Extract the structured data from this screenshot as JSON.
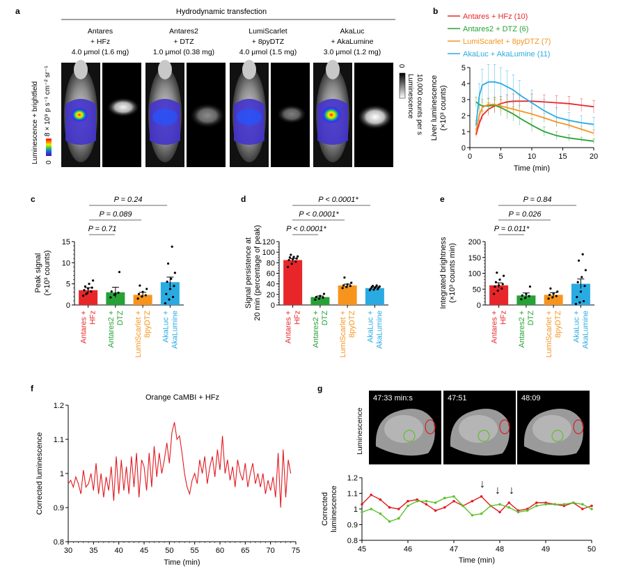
{
  "figure": {
    "panels": {
      "a": "a",
      "b": "b",
      "c": "c",
      "d": "d",
      "e": "e",
      "f": "f",
      "g": "g"
    },
    "a": {
      "title": "Hydrodynamic transfection",
      "columns": [
        {
          "line1": "Antares",
          "line2": "+ HFz",
          "line3": "4.0 μmol (1.6 mg)"
        },
        {
          "line1": "Antares2",
          "line2": "+ DTZ",
          "line3": "1.0 μmol (0.38 mg)"
        },
        {
          "line1": "LumiScarlet",
          "line2": "+ 8pyDTZ",
          "line3": "4.0 μmol (1.5 mg)"
        },
        {
          "line1": "AkaLuc",
          "line2": "+ AkaLumine",
          "line3": "3.0 μmol (1.2 mg)"
        }
      ],
      "left_label": "Luminescence + brightfield",
      "left_scale_top": "8 × 10⁹ p s⁻¹ cm⁻² sr⁻¹",
      "left_scale_bottom": "0",
      "right_scale_top": "0",
      "right_label_1": "Luminescence",
      "right_label_2": "10,000 counts per s",
      "colors": {
        "mouse_fur": "#b8b8b8",
        "signal_purple": "#4433cc",
        "signal_hot": "#ffdd00"
      }
    },
    "b": {
      "legend": [
        "Antares + HFz (10)",
        "Antares2 + DTZ (6)",
        "LumiScarlet + 8pyDTZ (7)",
        "AkaLuc + AkaLumine (11)"
      ]
    },
    "c": {
      "pvalues": [
        "P = 0.24",
        "P = 0.089",
        "P = 0.71"
      ]
    },
    "d": {
      "pvalues": [
        "P < 0.0001*",
        "P < 0.0001*",
        "P < 0.0001*"
      ]
    },
    "e": {
      "pvalues": [
        "P = 0.84",
        "P = 0.026",
        "P = 0.011*"
      ]
    },
    "g": {
      "timestamps": [
        "47:33 min:s",
        "47:51",
        "48:09"
      ],
      "image_label": "Luminescence",
      "arrows": [
        "↓",
        "↓",
        "↓"
      ]
    }
  },
  "chart_data": [
    {
      "id": "b",
      "type": "line",
      "title": "",
      "xlabel": "Time (min)",
      "ylabel": "Liver luminescence (×10³ counts)",
      "xlim": [
        0,
        20
      ],
      "ylim": [
        0,
        5
      ],
      "xticks": [
        0,
        5,
        10,
        15,
        20
      ],
      "yticks": [
        0,
        1,
        2,
        3,
        4,
        5
      ],
      "series": [
        {
          "name": "Antares + HFz (10)",
          "color": "#e8262a",
          "x": [
            1,
            1.5,
            2,
            3,
            4,
            5,
            6,
            7,
            8,
            10,
            12,
            14,
            16,
            18,
            20
          ],
          "y": [
            0.8,
            1.5,
            2.0,
            2.4,
            2.6,
            2.75,
            2.85,
            2.9,
            2.9,
            2.9,
            2.85,
            2.8,
            2.75,
            2.65,
            2.55
          ],
          "err": [
            0.1,
            0.2,
            0.3,
            0.4,
            0.4,
            0.45,
            0.45,
            0.45,
            0.45,
            0.45,
            0.45,
            0.45,
            0.45,
            0.4,
            0.4
          ]
        },
        {
          "name": "Antares2 + DTZ (6)",
          "color": "#26a136",
          "x": [
            1,
            1.5,
            2,
            3,
            4,
            5,
            6,
            7,
            8,
            10,
            12,
            14,
            16,
            18,
            20
          ],
          "y": [
            2.85,
            2.7,
            2.6,
            2.6,
            2.65,
            2.5,
            2.3,
            2.1,
            1.85,
            1.4,
            1.0,
            0.75,
            0.6,
            0.5,
            0.4
          ],
          "err": [
            0.3,
            0.35,
            0.4,
            0.45,
            0.5,
            0.5,
            0.5,
            0.45,
            0.45,
            0.4,
            0.3,
            0.25,
            0.2,
            0.15,
            0.15
          ]
        },
        {
          "name": "LumiScarlet + 8pyDTZ (7)",
          "color": "#f7941d",
          "x": [
            1,
            1.5,
            2,
            3,
            4,
            5,
            6,
            7,
            8,
            10,
            12,
            14,
            16,
            18,
            20
          ],
          "y": [
            1.0,
            2.0,
            2.5,
            2.7,
            2.7,
            2.6,
            2.5,
            2.4,
            2.3,
            2.1,
            1.85,
            1.6,
            1.4,
            1.15,
            0.9
          ],
          "err": [
            0.2,
            0.3,
            0.35,
            0.4,
            0.4,
            0.4,
            0.4,
            0.4,
            0.35,
            0.35,
            0.3,
            0.3,
            0.25,
            0.2,
            0.2
          ]
        },
        {
          "name": "AkaLuc + AkaLumine (11)",
          "color": "#29abe2",
          "x": [
            1,
            1.5,
            2,
            3,
            4,
            5,
            6,
            7,
            8,
            10,
            12,
            14,
            16,
            18,
            20
          ],
          "y": [
            1.4,
            3.2,
            3.9,
            4.1,
            4.1,
            4.0,
            3.8,
            3.6,
            3.3,
            2.8,
            2.3,
            1.9,
            1.7,
            1.55,
            1.45
          ],
          "err": [
            0.3,
            0.8,
            1.0,
            1.1,
            1.1,
            1.0,
            1.0,
            0.95,
            0.9,
            0.8,
            0.7,
            0.6,
            0.5,
            0.45,
            0.45
          ]
        }
      ]
    },
    {
      "id": "c",
      "type": "bar",
      "ylabel": "Peak signal (×10³ counts)",
      "ylim": [
        0,
        15
      ],
      "yticks": [
        0,
        5,
        10,
        15
      ],
      "categories": [
        "Antares + HFz",
        "Antares2 + DTZ",
        "LumiScarlet + 8pyDTZ",
        "AkaLuc + AkaLumine"
      ],
      "colors": [
        "#e8262a",
        "#26a136",
        "#f7941d",
        "#29abe2"
      ],
      "values": [
        3.5,
        3.0,
        2.4,
        5.4
      ],
      "errors": [
        0.6,
        1.2,
        0.6,
        1.2
      ],
      "points": [
        [
          2.2,
          2.8,
          3.2,
          3.5,
          3.9,
          4.1,
          4.4,
          5.0,
          5.8,
          2.6
        ],
        [
          1.8,
          2.4,
          2.9,
          3.2,
          2.6,
          7.8
        ],
        [
          1.5,
          2.0,
          2.3,
          2.6,
          3.1,
          3.8,
          4.6
        ],
        [
          0.4,
          1.3,
          1.9,
          2.6,
          3.8,
          4.5,
          5.5,
          6.2,
          7.6,
          9.8,
          13.8
        ]
      ]
    },
    {
      "id": "d",
      "type": "bar",
      "ylabel": "Signal persistence at 20 min (percentage of peak)",
      "ylim": [
        0,
        120
      ],
      "yticks": [
        0,
        20,
        40,
        60,
        80,
        100,
        120
      ],
      "categories": [
        "Antares + HFz",
        "Antares2 + DTZ",
        "LumiScarlet + 8pyDTZ",
        "AkaLuc + AkaLumine"
      ],
      "colors": [
        "#e8262a",
        "#26a136",
        "#f7941d",
        "#29abe2"
      ],
      "values": [
        85,
        15,
        37,
        32
      ],
      "errors": [
        3,
        2,
        2.5,
        2
      ],
      "points": [
        [
          72,
          78,
          82,
          85,
          87,
          88,
          90,
          91,
          92,
          95
        ],
        [
          10,
          12,
          14,
          15,
          17,
          21
        ],
        [
          32,
          34,
          36,
          37,
          39,
          42,
          52
        ],
        [
          28,
          29,
          30,
          31,
          32,
          33,
          34,
          34,
          35,
          36,
          37
        ]
      ]
    },
    {
      "id": "e",
      "type": "bar",
      "ylabel": "Integrated brightness (×10³ counts min)",
      "ylim": [
        0,
        200
      ],
      "yticks": [
        0,
        50,
        100,
        150,
        200
      ],
      "categories": [
        "Antares + HFz",
        "Antares2 + DTZ",
        "LumiScarlet + 8pyDTZ",
        "AkaLuc + AkaLumine"
      ],
      "colors": [
        "#e8262a",
        "#26a136",
        "#f7941d",
        "#29abe2"
      ],
      "values": [
        62,
        30,
        32,
        67
      ],
      "errors": [
        8,
        8,
        7,
        15
      ],
      "points": [
        [
          35,
          45,
          52,
          58,
          62,
          66,
          72,
          80,
          92,
          102
        ],
        [
          18,
          22,
          28,
          30,
          35,
          58
        ],
        [
          20,
          24,
          28,
          32,
          36,
          42,
          52
        ],
        [
          3,
          8,
          12,
          25,
          42,
          60,
          72,
          88,
          110,
          140,
          160
        ]
      ]
    },
    {
      "id": "f",
      "type": "line",
      "title": "Orange CaMBI + HFz",
      "xlabel": "Time (min)",
      "ylabel": "Corrected luminescence",
      "xlim": [
        30,
        75
      ],
      "ylim": [
        0.8,
        1.2
      ],
      "xticks": [
        30,
        35,
        40,
        45,
        50,
        55,
        60,
        65,
        70,
        75
      ],
      "yticks": [
        0.8,
        0.9,
        1.0,
        1.1,
        1.2
      ],
      "series": [
        {
          "name": "Orange CaMBI + HFz",
          "color": "#e0191f",
          "x": [
            30,
            30.5,
            31,
            31.5,
            32,
            32.5,
            33,
            33.5,
            34,
            34.5,
            35,
            35.5,
            36,
            36.5,
            37,
            37.5,
            38,
            38.5,
            39,
            39.5,
            40,
            40.5,
            41,
            41.5,
            42,
            42.5,
            43,
            43.5,
            44,
            44.5,
            45,
            45.5,
            46,
            46.5,
            47,
            47.5,
            48,
            48.5,
            49,
            49.5,
            50,
            50.5,
            51,
            51.5,
            52,
            52.5,
            53,
            53.5,
            54,
            54.5,
            55,
            55.5,
            56,
            56.5,
            57,
            57.5,
            58,
            58.5,
            59,
            59.5,
            60,
            60.5,
            61,
            61.5,
            62,
            62.5,
            63,
            63.5,
            64,
            64.5,
            65,
            65.5,
            66,
            66.5,
            67,
            67.5,
            68,
            68.5,
            69,
            69.5,
            70,
            70.5,
            71,
            71.5,
            72,
            72.5,
            73,
            73.5,
            74
          ],
          "y": [
            0.97,
            0.98,
            0.96,
            0.99,
            0.97,
            0.94,
            1.01,
            0.96,
            0.97,
            1.0,
            0.95,
            1.03,
            0.94,
            1.0,
            0.93,
            0.99,
            0.95,
            1.02,
            0.92,
            1.05,
            0.94,
            1.04,
            0.95,
            1.02,
            0.94,
            1.05,
            0.96,
            1.06,
            0.93,
            1.04,
            1.02,
            0.95,
            1.06,
            0.96,
            1.08,
            0.99,
            1.06,
            1.0,
            1.04,
            1.09,
            1.03,
            1.12,
            1.15,
            1.1,
            1.11,
            1.06,
            1.0,
            0.96,
            0.94,
            0.98,
            1.0,
            0.97,
            1.04,
            1.0,
            1.05,
            0.97,
            1.02,
            1.05,
            0.99,
            1.07,
            1.01,
            1.11,
            1.0,
            1.04,
            0.98,
            1.02,
            0.96,
            1.04,
            1.0,
            0.98,
            1.03,
            0.96,
            1.0,
            1.03,
            0.97,
            1.0,
            0.96,
            1.0,
            0.94,
            0.98,
            0.95,
            0.99,
            0.93,
            1.06,
            0.9,
            1.07,
            0.93,
            1.04,
            1.0
          ]
        }
      ]
    },
    {
      "id": "g",
      "type": "line",
      "xlabel": "Time (min)",
      "ylabel": "Corrected luminescence",
      "xlim": [
        45,
        50
      ],
      "ylim": [
        0.8,
        1.2
      ],
      "xticks": [
        45,
        46,
        47,
        48,
        49,
        50
      ],
      "yticks": [
        0.8,
        0.9,
        1.0,
        1.1,
        1.2
      ],
      "series": [
        {
          "name": "red ROI",
          "color": "#e0191f",
          "x": [
            45,
            45.2,
            45.4,
            45.6,
            45.8,
            46,
            46.2,
            46.4,
            46.6,
            46.8,
            47,
            47.2,
            47.4,
            47.6,
            47.8,
            48,
            48.2,
            48.4,
            48.6,
            48.8,
            49,
            49.2,
            49.4,
            49.6,
            49.8,
            50
          ],
          "y": [
            1.03,
            1.09,
            1.06,
            1.01,
            1.0,
            1.05,
            1.06,
            1.03,
            0.99,
            1.01,
            1.05,
            1.02,
            1.05,
            1.08,
            1.02,
            0.98,
            1.04,
            0.99,
            1.0,
            1.04,
            1.04,
            1.03,
            1.02,
            1.04,
            1.0,
            1.02
          ]
        },
        {
          "name": "green ROI",
          "color": "#5cc02a",
          "x": [
            45,
            45.2,
            45.4,
            45.6,
            45.8,
            46,
            46.2,
            46.4,
            46.6,
            46.8,
            47,
            47.2,
            47.4,
            47.6,
            47.8,
            48,
            48.2,
            48.4,
            48.6,
            48.8,
            49,
            49.2,
            49.4,
            49.6,
            49.8,
            50
          ],
          "y": [
            0.98,
            1.0,
            0.97,
            0.92,
            0.94,
            1.02,
            1.05,
            1.05,
            1.04,
            1.07,
            1.08,
            1.02,
            0.96,
            0.97,
            1.02,
            1.03,
            1.01,
            0.98,
            0.99,
            1.02,
            1.03,
            1.03,
            1.03,
            1.04,
            1.03,
            1.0
          ]
        }
      ]
    }
  ]
}
